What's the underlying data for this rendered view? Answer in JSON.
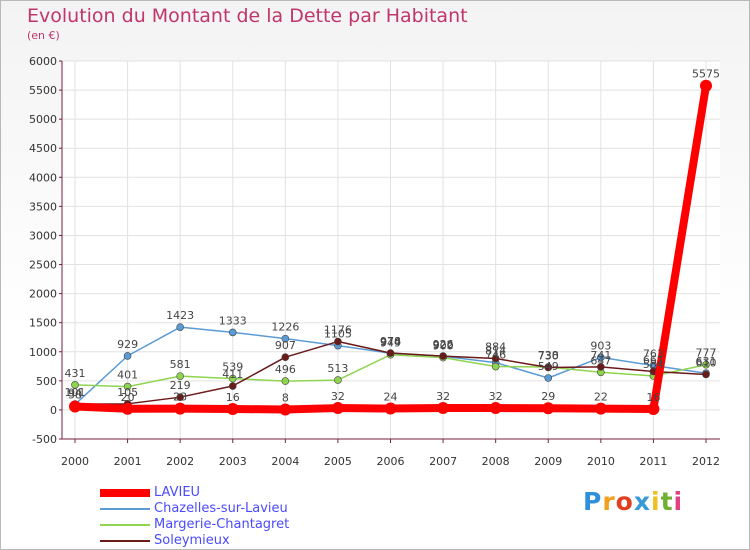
{
  "chart_data": {
    "type": "line",
    "title": "Evolution du Montant de la Dette par Habitant",
    "subtitle": "(en €)",
    "x": [
      "2000",
      "2001",
      "2002",
      "2003",
      "2004",
      "2005",
      "2006",
      "2007",
      "2008",
      "2009",
      "2010",
      "2011",
      "2012"
    ],
    "ylim": [
      -500,
      6000
    ],
    "yticks": [
      -500,
      0,
      500,
      1000,
      1500,
      2000,
      2500,
      3000,
      3500,
      4000,
      4500,
      5000,
      5500,
      6000
    ],
    "grid": true,
    "legend_position": "bottom-left",
    "series": [
      {
        "name": "LAVIEU",
        "color": "#ff0000",
        "values": [
          58,
          20,
          23,
          16,
          8,
          32,
          24,
          32,
          32,
          29,
          22,
          16,
          5575
        ],
        "labels": [
          "58",
          "20",
          "23",
          "16",
          "8",
          "32",
          "24",
          "32",
          "32",
          "29",
          "22",
          "16",
          "5575"
        ]
      },
      {
        "name": "Chazelles-sur-Lavieu",
        "color": "#5b9bd5",
        "values": [
          94,
          929,
          1423,
          1333,
          1226,
          1105,
          974,
          922,
          814,
          549,
          903,
          763,
          631
        ],
        "labels": [
          "94",
          "929",
          "1423",
          "1333",
          "1226",
          "1105",
          "974",
          "922",
          "814",
          "549",
          "903",
          "763",
          "631"
        ]
      },
      {
        "name": "Margerie-Chantagret",
        "color": "#8fd44e",
        "values": [
          431,
          401,
          581,
          539,
          496,
          513,
          949,
          900,
          746,
          738,
          647,
          584,
          777
        ],
        "labels": [
          "431",
          "401",
          "581",
          "539",
          "496",
          "513",
          "949",
          "900",
          "746",
          "738",
          "647",
          "584",
          "777"
        ]
      },
      {
        "name": "Soleymieux",
        "color": "#6b1a1a",
        "values": [
          101,
          105,
          219,
          411,
          907,
          1176,
          978,
          926,
          884,
          730,
          741,
          661,
          610
        ],
        "labels": [
          "101",
          "105",
          "219",
          "411",
          "907",
          "1176",
          "978",
          "926",
          "884",
          "730",
          "741",
          "661",
          "610"
        ]
      }
    ]
  },
  "logo": {
    "letters": [
      "P",
      "r",
      "o",
      "x",
      "i",
      "t",
      "i"
    ],
    "colors": [
      "#2f8fd8",
      "#f0a020",
      "#e04020",
      "#3a9ad8",
      "#f0c020",
      "#70b030",
      "#e04080"
    ]
  }
}
